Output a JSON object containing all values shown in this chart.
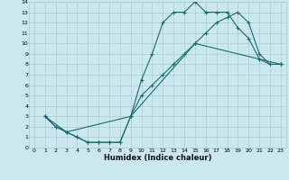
{
  "xlabel": "Humidex (Indice chaleur)",
  "ylabel": "",
  "bg_color": "#cce8ef",
  "grid_color": "#aacccc",
  "line_color": "#1a6b6b",
  "xlim": [
    -0.5,
    23.5
  ],
  "ylim": [
    0,
    14
  ],
  "xticks": [
    0,
    1,
    2,
    3,
    4,
    5,
    6,
    7,
    8,
    9,
    10,
    11,
    12,
    13,
    14,
    15,
    16,
    17,
    18,
    19,
    20,
    21,
    22,
    23
  ],
  "yticks": [
    0,
    1,
    2,
    3,
    4,
    5,
    6,
    7,
    8,
    9,
    10,
    11,
    12,
    13,
    14
  ],
  "line1_x": [
    1,
    2,
    3,
    4,
    5,
    6,
    7,
    8,
    9,
    10,
    11,
    12,
    13,
    14,
    15,
    16,
    17,
    18,
    19,
    20,
    21,
    22,
    23
  ],
  "line1_y": [
    3,
    2,
    1.5,
    1,
    0.5,
    0.5,
    0.5,
    0.5,
    3.0,
    6.5,
    9.0,
    12.0,
    13.0,
    13.0,
    14.0,
    13.0,
    13.0,
    13.0,
    11.5,
    10.5,
    8.5,
    8.0,
    8.0
  ],
  "line2_x": [
    1,
    2,
    3,
    4,
    5,
    6,
    7,
    8,
    9,
    10,
    11,
    12,
    13,
    14,
    15,
    16,
    17,
    18,
    19,
    20,
    21,
    22,
    23
  ],
  "line2_y": [
    3,
    2,
    1.5,
    1,
    0.5,
    0.5,
    0.5,
    0.5,
    3.0,
    5.0,
    6.0,
    7.0,
    8.0,
    9.0,
    10.0,
    11.0,
    12.0,
    12.5,
    13.0,
    12.0,
    9.0,
    8.0,
    8.0
  ],
  "line3_x": [
    1,
    3,
    9,
    15,
    23
  ],
  "line3_y": [
    3,
    1.5,
    3,
    10,
    8
  ]
}
